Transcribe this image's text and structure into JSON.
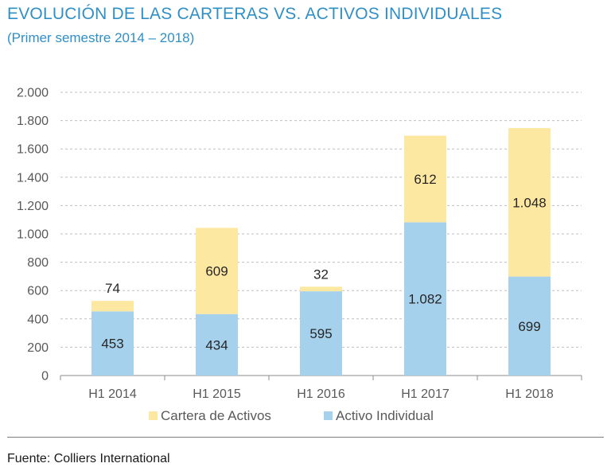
{
  "title": "EVOLUCIÓN DE LAS CARTERAS VS. ACTIVOS INDIVIDUALES",
  "subtitle": "(Primer semestre 2014 – 2018)",
  "source": "Fuente: Colliers International",
  "colors": {
    "title": "#2f8fc6",
    "activo_individual": "#a6d1ec",
    "cartera_de_activos": "#fde8a2",
    "grid": "#bfbfbf",
    "axis_text": "#595959"
  },
  "chart_data": {
    "type": "bar",
    "stacked": true,
    "title": "EVOLUCIÓN DE LAS CARTERAS VS. ACTIVOS INDIVIDUALES",
    "subtitle": "(Primer semestre 2014 – 2018)",
    "categories": [
      "H1 2014",
      "H1 2015",
      "H1 2016",
      "H1 2017",
      "H1 2018"
    ],
    "series": [
      {
        "name": "Activo Individual",
        "values": [
          453,
          434,
          595,
          1082,
          699
        ],
        "labels": [
          "453",
          "434",
          "595",
          "1.082",
          "699"
        ]
      },
      {
        "name": "Cartera de Activos",
        "values": [
          74,
          609,
          32,
          612,
          1048
        ],
        "labels": [
          "74",
          "609",
          "32",
          "612",
          "1.048"
        ]
      }
    ],
    "ylim": [
      0,
      2000
    ],
    "yticks": [
      0,
      200,
      400,
      600,
      800,
      1000,
      1200,
      1400,
      1600,
      1800,
      2000
    ],
    "ytick_labels": [
      "0",
      "200",
      "400",
      "600",
      "800",
      "1.000",
      "1.200",
      "1.400",
      "1.600",
      "1.800",
      "2.000"
    ],
    "xlabel": "",
    "ylabel": "",
    "grid": "horizontal dashed",
    "legend": {
      "position": "bottom",
      "entries": [
        "Cartera de Activos",
        "Activo Individual"
      ]
    }
  }
}
